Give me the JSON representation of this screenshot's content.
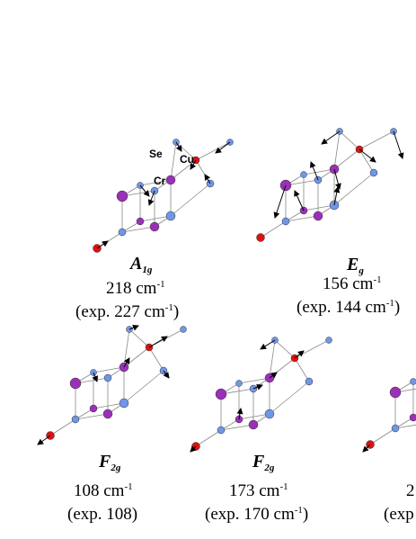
{
  "atom_labels": {
    "se": "Se",
    "cu": "Cu",
    "cr": "Cr"
  },
  "colors": {
    "cr": "#9b30b8",
    "se": "#6f96e8",
    "cu": "#e01010",
    "bond": "#888888",
    "arrow": "#000000"
  },
  "modes": [
    {
      "symbol": "A",
      "symbol_sub": "1g",
      "freq_value": "218",
      "freq_unit": "cm",
      "freq_exp": "-1",
      "exp_prefix": "(exp. 227 ",
      "exp_unit": "cm",
      "exp_exp": "-1",
      "exp_suffix": ")"
    },
    {
      "symbol": "E",
      "symbol_sub": "g",
      "freq_value": "156",
      "freq_unit": "cm",
      "freq_exp": "-1",
      "exp_prefix": "(exp. 144 ",
      "exp_unit": "cm",
      "exp_exp": "-1",
      "exp_suffix": ")"
    },
    {
      "symbol": "F",
      "symbol_sub": "2g",
      "freq_value": "108",
      "freq_unit": "cm",
      "freq_exp": "-1",
      "exp_prefix": "(exp. 108)",
      "exp_unit": "",
      "exp_exp": "",
      "exp_suffix": ""
    },
    {
      "symbol": "F",
      "symbol_sub": "2g",
      "freq_value": "173",
      "freq_unit": "cm",
      "freq_exp": "-1",
      "exp_prefix": "(exp. 170 ",
      "exp_unit": "cm",
      "exp_exp": "-1",
      "exp_suffix": ")"
    },
    {
      "freq_value": "2",
      "exp_prefix": "(exp"
    }
  ]
}
